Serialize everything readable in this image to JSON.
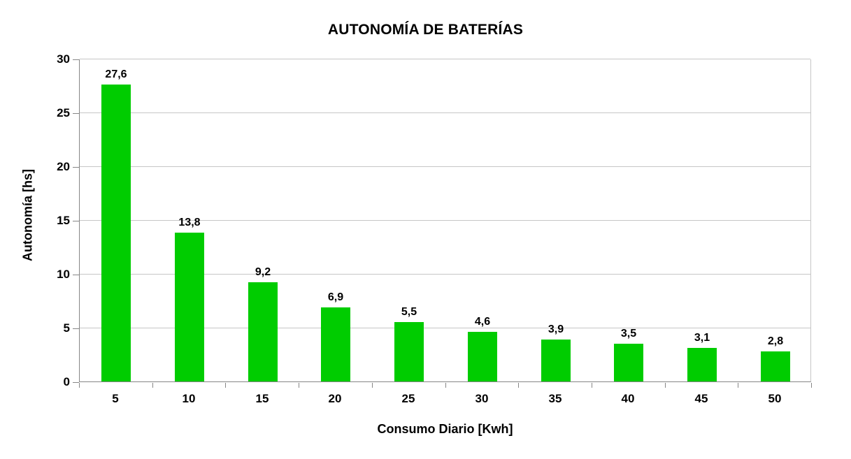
{
  "chart_data": {
    "type": "bar",
    "title": "AUTONOMÍA DE BATERÍAS",
    "xlabel": "Consumo Diario [Kwh]",
    "ylabel": "Autonomía [hs]",
    "categories": [
      "5",
      "10",
      "15",
      "20",
      "25",
      "30",
      "35",
      "40",
      "45",
      "50"
    ],
    "values": [
      27.6,
      13.8,
      9.2,
      6.9,
      5.5,
      4.6,
      3.9,
      3.5,
      3.1,
      2.8
    ],
    "value_labels": [
      "27,6",
      "13,8",
      "9,2",
      "6,9",
      "5,5",
      "4,6",
      "3,9",
      "3,5",
      "3,1",
      "2,8"
    ],
    "ylim": [
      0,
      30
    ],
    "yticks": [
      0,
      5,
      10,
      15,
      20,
      25,
      30
    ],
    "grid": true,
    "legend": false,
    "colors": {
      "bar": "#00cc00",
      "gridline": "#c6c6c6",
      "axis_line": "#868686",
      "text": "#000000",
      "background": "#ffffff"
    }
  }
}
